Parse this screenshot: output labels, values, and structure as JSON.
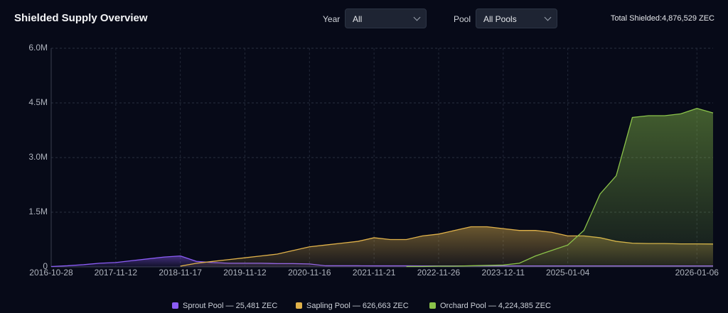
{
  "header": {
    "title": "Shielded Supply Overview",
    "year_label": "Year",
    "year_value": "All",
    "pool_label": "Pool",
    "pool_value": "All Pools",
    "total": "Total Shielded:4,876,529 ZEC"
  },
  "chart_data": {
    "type": "area",
    "categories": [
      "2016-10-28",
      null,
      null,
      null,
      "2017-11-12",
      null,
      null,
      null,
      "2018-11-17",
      null,
      null,
      null,
      "2019-11-12",
      null,
      null,
      null,
      "2020-11-16",
      null,
      null,
      null,
      "2021-11-21",
      null,
      null,
      null,
      "2022-11-26",
      null,
      null,
      null,
      "2023-12-11",
      null,
      null,
      null,
      "2025-01-04",
      null,
      null,
      null,
      null,
      null,
      null,
      null,
      "2026-01-06",
      null
    ],
    "series": [
      {
        "name": "Sprout Pool — 25,481 ZEC",
        "color": "#8b5cf6",
        "values": [
          10000,
          30000,
          60000,
          100000,
          120000,
          170000,
          220000,
          270000,
          300000,
          150000,
          120000,
          100000,
          100000,
          100000,
          90000,
          90000,
          80000,
          30000,
          30000,
          30000,
          28000,
          28000,
          28000,
          27000,
          27000,
          27000,
          27000,
          26000,
          26000,
          26000,
          26000,
          26000,
          26000,
          26000,
          26000,
          25500,
          25500,
          25500,
          25500,
          25500,
          25500,
          25481
        ]
      },
      {
        "name": "Sapling Pool — 626,663 ZEC",
        "color": "#e0b24a",
        "values": [
          null,
          null,
          null,
          null,
          null,
          null,
          null,
          null,
          20000,
          100000,
          150000,
          200000,
          250000,
          300000,
          350000,
          450000,
          550000,
          600000,
          650000,
          700000,
          800000,
          750000,
          750000,
          850000,
          900000,
          1000000,
          1100000,
          1100000,
          1050000,
          1000000,
          1000000,
          950000,
          850000,
          850000,
          800000,
          700000,
          650000,
          640000,
          640000,
          630000,
          630000,
          626663
        ]
      },
      {
        "name": "Orchard Pool — 4,224,385 ZEC",
        "color": "#8bc34a",
        "values": [
          null,
          null,
          null,
          null,
          null,
          null,
          null,
          null,
          null,
          null,
          null,
          null,
          null,
          null,
          null,
          null,
          null,
          null,
          null,
          null,
          null,
          null,
          10000,
          10000,
          20000,
          20000,
          30000,
          40000,
          50000,
          100000,
          300000,
          450000,
          600000,
          1000000,
          2000000,
          2500000,
          4100000,
          4150000,
          4150000,
          4200000,
          4350000,
          4224385
        ]
      }
    ],
    "ylim": [
      0,
      6000000
    ],
    "yticks": [
      0,
      {
        "value": 1500000,
        "label": "1.5M"
      },
      {
        "value": 3000000,
        "label": "3.0M"
      },
      {
        "value": 4500000,
        "label": "4.5M"
      },
      {
        "value": 6000000,
        "label": "6.0M"
      }
    ],
    "grid": true
  }
}
